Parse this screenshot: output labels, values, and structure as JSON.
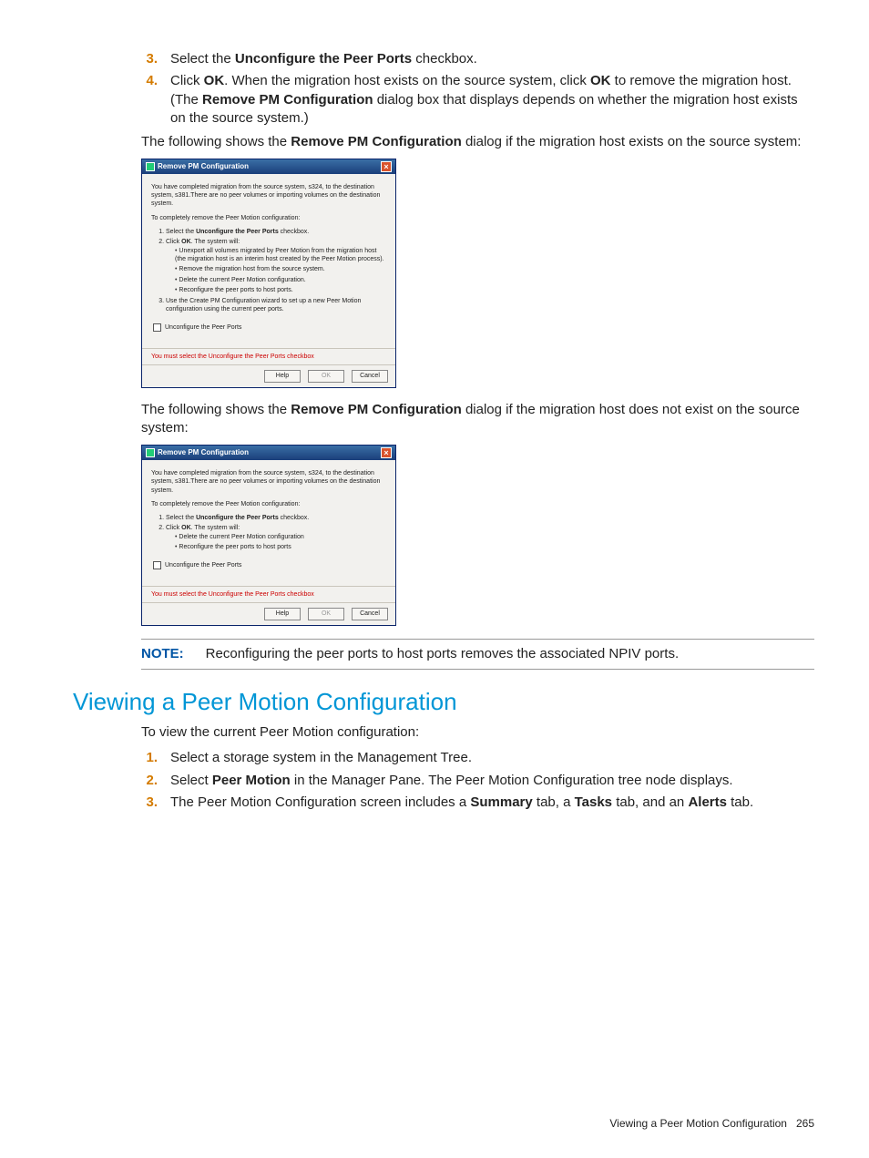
{
  "steps_top": [
    {
      "num": "3.",
      "html": "Select the <b>Unconfigure the Peer Ports</b> checkbox."
    },
    {
      "num": "4.",
      "html": "Click <b>OK</b>. When the migration host exists on the source system, click <b>OK</b> to remove the migration host. (The <b>Remove PM Configuration</b> dialog box that displays depends on whether the migration host exists on the source system.)"
    }
  ],
  "para_before_dialog1": "The following shows the <b>Remove PM Configuration</b> dialog if the migration host exists on the source system:",
  "dialog1": {
    "title": "Remove PM Configuration",
    "intro": "You have completed migration from the source system, s324, to the destination system, s381.There are no peer volumes or importing volumes on the destination system.",
    "instr": "To completely remove the Peer Motion configuration:",
    "bold_sub": "Unconfigure the Peer Ports",
    "step1": "Select the <b>Unconfigure the Peer Ports</b> checkbox.",
    "step2": "Click <b>OK</b>. The system will:",
    "bullets": [
      "Unexport all volumes migrated by Peer Motion from the migration host (the migration host is an interim host created by the Peer Motion process).",
      "Remove the migration host from the source system.",
      "Delete the current Peer Motion configuration.",
      "Reconfigure the peer ports to host ports."
    ],
    "step3": "Use the Create PM Configuration wizard to set up a new Peer Motion configuration using the current peer ports.",
    "checkbox_label": "Unconfigure the Peer Ports",
    "warning": "You must select the Unconfigure the Peer Ports checkbox",
    "buttons": {
      "help": "Help",
      "ok": "OK",
      "cancel": "Cancel"
    }
  },
  "para_before_dialog2": "The following shows the <b>Remove PM Configuration</b> dialog if the migration host does not exist on the source system:",
  "dialog2": {
    "title": "Remove PM Configuration",
    "intro": "You have completed migration from the source system, s324, to the destination system, s381.There are no peer volumes or importing volumes on the destination system.",
    "instr": "To completely remove the Peer Motion configuration:",
    "step1": "Select the <b>Unconfigure the Peer Ports</b> checkbox.",
    "step2": "Click <b>OK</b>. The system will:",
    "bullets": [
      "Delete the current Peer Motion configuration",
      "Reconfigure the peer ports to host ports"
    ],
    "checkbox_label": "Unconfigure the Peer Ports",
    "warning": "You must select the Unconfigure the Peer Ports checkbox",
    "buttons": {
      "help": "Help",
      "ok": "OK",
      "cancel": "Cancel"
    }
  },
  "note": {
    "label": "NOTE:",
    "text": "Reconfiguring the peer ports to host ports removes the associated NPIV ports."
  },
  "section_title": "Viewing a Peer Motion Configuration",
  "section_lead": "To view the current Peer Motion configuration:",
  "steps_bottom": [
    {
      "num": "1.",
      "html": "Select a storage system in the Management Tree."
    },
    {
      "num": "2.",
      "html": "Select <b>Peer Motion</b> in the Manager Pane. The Peer Motion Configuration tree node displays."
    },
    {
      "num": "3.",
      "html": "The Peer Motion Configuration screen includes a <b>Summary</b> tab, a <b>Tasks</b> tab, and an <b>Alerts</b> tab."
    }
  ],
  "footer": {
    "text": "Viewing a Peer Motion Configuration",
    "page": "265"
  },
  "colors": {
    "accent_orange": "#d47b00",
    "heading_blue": "#0096d6",
    "note_blue": "#0055a5"
  }
}
